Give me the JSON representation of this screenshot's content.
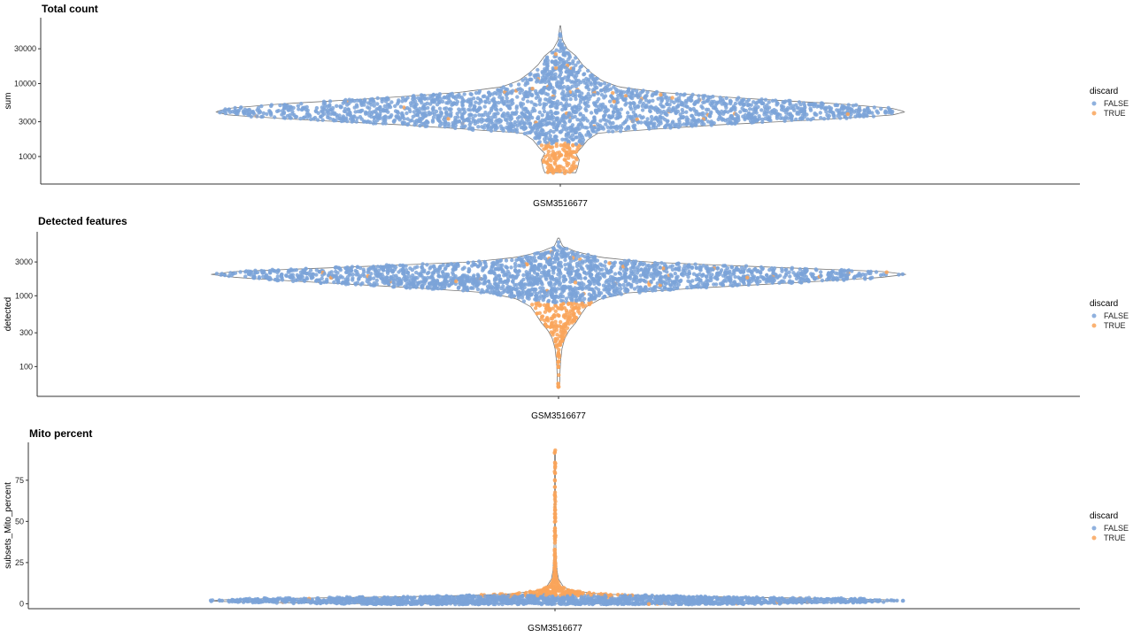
{
  "colors": {
    "FALSE": "#7ba3d8",
    "TRUE": "#f9a55a",
    "violin_outline": "#777777"
  },
  "chart_data": [
    {
      "type": "violin",
      "title": "Total count",
      "xlabel": "GSM3516677",
      "ylabel": "sum",
      "yscale": "log10",
      "yticks": [
        1000,
        3000,
        10000,
        30000
      ],
      "ytick_labels": [
        "1000",
        "3000",
        "10000",
        "30000"
      ],
      "ylim": [
        420,
        80000
      ],
      "legend": {
        "title": "discard",
        "entries": [
          "FALSE",
          "TRUE"
        ],
        "position": "right"
      },
      "distribution": {
        "min": 600,
        "max": 62000,
        "profile": [
          [
            600,
            0.045
          ],
          [
            700,
            0.05
          ],
          [
            900,
            0.055
          ],
          [
            1100,
            0.045
          ],
          [
            1300,
            0.06
          ],
          [
            1700,
            0.08
          ],
          [
            2100,
            0.11
          ],
          [
            2700,
            0.45
          ],
          [
            3300,
            0.8
          ],
          [
            3700,
            0.96
          ],
          [
            4100,
            1.0
          ],
          [
            4600,
            0.96
          ],
          [
            5300,
            0.8
          ],
          [
            6200,
            0.55
          ],
          [
            7500,
            0.3
          ],
          [
            9000,
            0.17
          ],
          [
            11000,
            0.12
          ],
          [
            14000,
            0.09
          ],
          [
            18000,
            0.065
          ],
          [
            24000,
            0.045
          ],
          [
            30000,
            0.02
          ],
          [
            40000,
            0.006
          ],
          [
            62000,
            0.001
          ]
        ],
        "discard_true_below": 1500
      }
    },
    {
      "type": "violin",
      "title": "Detected features",
      "xlabel": "GSM3516677",
      "ylabel": "detected",
      "yscale": "log10",
      "yticks": [
        100,
        300,
        1000,
        3000
      ],
      "ytick_labels": [
        "100",
        "300",
        "1000",
        "3000"
      ],
      "ylim": [
        38,
        8000
      ],
      "legend": {
        "title": "discard",
        "entries": [
          "FALSE",
          "TRUE"
        ],
        "position": "right"
      },
      "distribution": {
        "min": 52,
        "max": 6500,
        "profile": [
          [
            52,
            0.003
          ],
          [
            80,
            0.004
          ],
          [
            120,
            0.006
          ],
          [
            180,
            0.01
          ],
          [
            250,
            0.018
          ],
          [
            320,
            0.03
          ],
          [
            420,
            0.05
          ],
          [
            550,
            0.065
          ],
          [
            700,
            0.08
          ],
          [
            900,
            0.12
          ],
          [
            1100,
            0.2
          ],
          [
            1300,
            0.42
          ],
          [
            1600,
            0.75
          ],
          [
            1800,
            0.92
          ],
          [
            2000,
            1.0
          ],
          [
            2200,
            0.93
          ],
          [
            2600,
            0.55
          ],
          [
            3000,
            0.25
          ],
          [
            3500,
            0.12
          ],
          [
            4200,
            0.05
          ],
          [
            5000,
            0.012
          ],
          [
            6500,
            0.002
          ]
        ],
        "discard_true_below": 800
      }
    },
    {
      "type": "violin",
      "title": "Mito percent",
      "xlabel": "GSM3516677",
      "ylabel": "subsets_Mito_percent",
      "yscale": "linear",
      "yticks": [
        0,
        25,
        50,
        75
      ],
      "ytick_labels": [
        "0",
        "25",
        "50",
        "75"
      ],
      "ylim": [
        -3,
        98
      ],
      "legend": {
        "title": "discard",
        "entries": [
          "FALSE",
          "TRUE"
        ],
        "position": "right"
      },
      "distribution": {
        "min": 0,
        "max": 93,
        "profile": [
          [
            0,
            0.55
          ],
          [
            1,
            0.9
          ],
          [
            2,
            1.0
          ],
          [
            3,
            0.85
          ],
          [
            4,
            0.5
          ],
          [
            5,
            0.25
          ],
          [
            6,
            0.12
          ],
          [
            8,
            0.05
          ],
          [
            10,
            0.025
          ],
          [
            15,
            0.01
          ],
          [
            20,
            0.006
          ],
          [
            30,
            0.003
          ],
          [
            50,
            0.0015
          ],
          [
            93,
            0.001
          ]
        ],
        "discard_true_above": 5,
        "outliers": [
          30,
          32,
          42,
          57,
          66,
          75,
          92,
          93
        ]
      }
    }
  ]
}
